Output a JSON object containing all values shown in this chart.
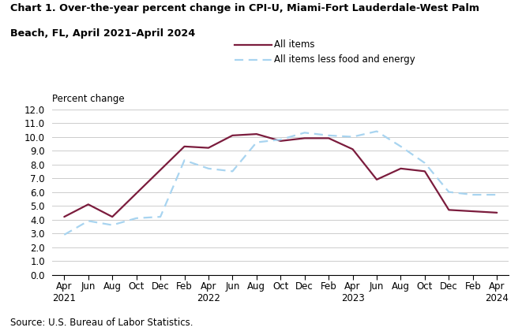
{
  "title_line1": "Chart 1. Over-the-year percent change in CPI-U, Miami-Fort Lauderdale-West Palm",
  "title_line2": "Beach, FL, April 2021–April 2024",
  "ylabel": "Percent change",
  "source": "Source: U.S. Bureau of Labor Statistics.",
  "x_labels": [
    "Apr\n2021",
    "Jun",
    "Aug",
    "Oct",
    "Dec",
    "Feb",
    "Apr\n2022",
    "Jun",
    "Aug",
    "Oct",
    "Dec",
    "Feb",
    "Apr\n2023",
    "Jun",
    "Aug",
    "Oct",
    "Dec",
    "Feb",
    "Apr\n2024"
  ],
  "all_items_x": [
    0,
    1,
    2,
    5,
    6,
    7,
    8,
    9,
    10,
    11,
    12,
    13,
    14,
    15,
    16,
    18
  ],
  "all_items_y": [
    4.2,
    5.1,
    4.2,
    9.3,
    9.2,
    10.1,
    10.2,
    9.7,
    9.9,
    9.9,
    9.1,
    6.9,
    7.7,
    7.5,
    4.7,
    4.5
  ],
  "less_fe_x": [
    0,
    1,
    2,
    3,
    4,
    5,
    6,
    7,
    8,
    9,
    10,
    11,
    12,
    13,
    14,
    15,
    16,
    17,
    18
  ],
  "less_fe_y": [
    2.9,
    3.9,
    3.6,
    4.1,
    4.2,
    8.3,
    7.7,
    7.5,
    9.6,
    9.8,
    10.3,
    10.1,
    10.0,
    10.4,
    9.3,
    8.1,
    6.0,
    5.8,
    5.8
  ],
  "all_items_color": "#7b1c3d",
  "less_fe_color": "#a8d4f0",
  "ylim": [
    0.0,
    12.0
  ],
  "yticks": [
    0.0,
    1.0,
    2.0,
    3.0,
    4.0,
    5.0,
    6.0,
    7.0,
    8.0,
    9.0,
    10.0,
    11.0,
    12.0
  ],
  "legend_all_items": "All items",
  "legend_less_fe": "All items less food and energy"
}
